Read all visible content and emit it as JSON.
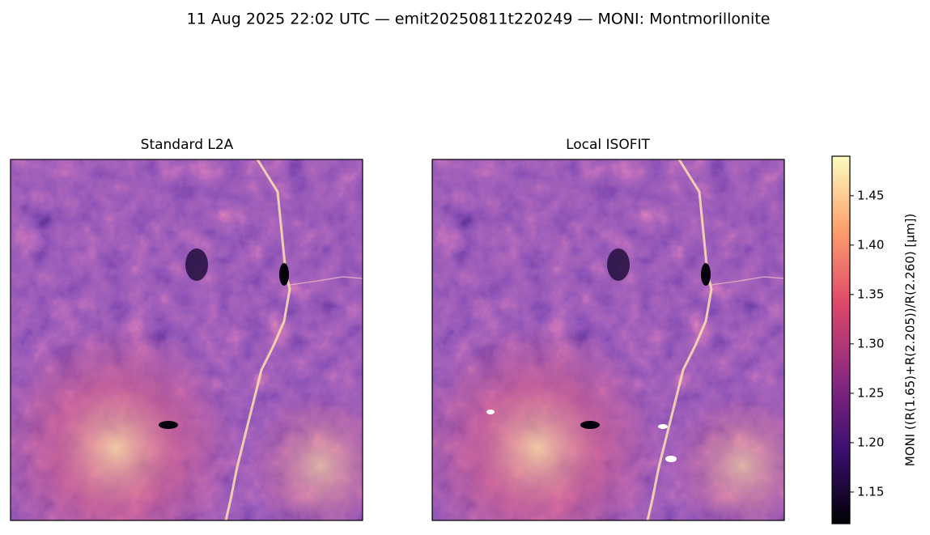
{
  "chart_data": {
    "type": "image",
    "title": "11 Aug 2025 22:02 UTC — emit20250811t220249 — MONI: Montmorillonite",
    "panels": [
      {
        "title": "Standard L2A"
      },
      {
        "title": "Local ISOFIT"
      }
    ],
    "colorbar": {
      "label": "MONI  ((R(1.65)+R(2.205))/R(2.260)  [µm])",
      "ylim": [
        1.118,
        1.49
      ],
      "yticks": [
        1.15,
        {
          "value": 1.2,
          "label": "1.20"
        },
        1.25,
        {
          "value": 1.3,
          "label": "1.30"
        },
        1.35,
        {
          "value": 1.4,
          "label": "1.40"
        },
        1.45
      ],
      "colormap": [
        "#000004",
        "#3b0f70",
        "#8c2981",
        "#de4968",
        "#fe9f6d",
        "#fcfdbf"
      ]
    }
  }
}
